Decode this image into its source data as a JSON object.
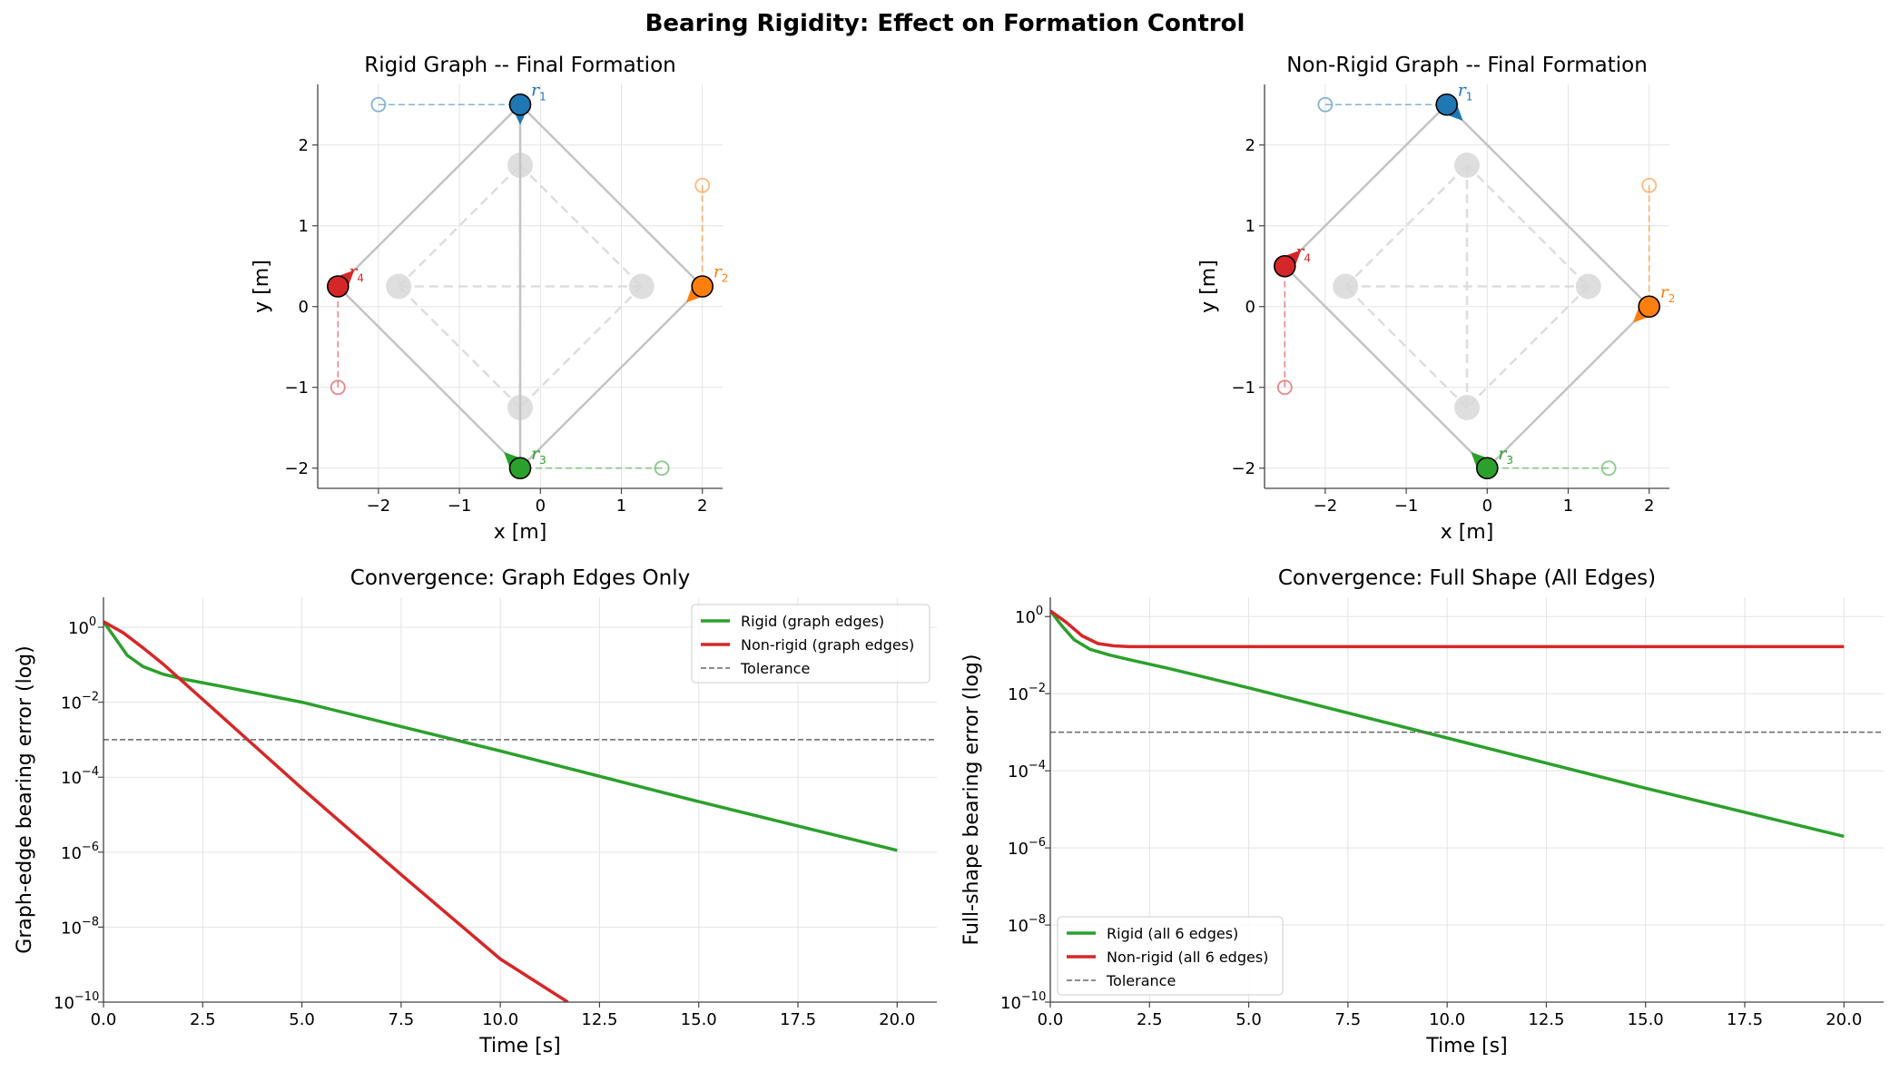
{
  "figure": {
    "title": "Bearing Rigidity: Effect on Formation Control"
  },
  "chart_data": [
    {
      "type": "scatter",
      "title": "Rigid Graph -- Final Formation",
      "xlabel": "x [m]",
      "ylabel": "y [m]",
      "xlim": [
        -2.75,
        2.25
      ],
      "ylim": [
        -2.25,
        2.75
      ],
      "xticks": [
        -2,
        -1,
        0,
        1,
        2
      ],
      "yticks": [
        -2,
        -1,
        0,
        1,
        2
      ],
      "grid": true,
      "target_shape": [
        [
          -0.25,
          1.75
        ],
        [
          1.25,
          0.25
        ],
        [
          -0.25,
          -1.25
        ],
        [
          -1.75,
          0.25
        ]
      ],
      "target_edges": [
        [
          0,
          1
        ],
        [
          1,
          2
        ],
        [
          2,
          3
        ],
        [
          3,
          0
        ],
        [
          0,
          2
        ],
        [
          1,
          3
        ]
      ],
      "graph_edges": [
        [
          0,
          1
        ],
        [
          1,
          2
        ],
        [
          2,
          3
        ],
        [
          3,
          0
        ],
        [
          0,
          2
        ]
      ],
      "robots": [
        {
          "name": "r",
          "sub": "1",
          "color": "#1f77b4",
          "start": [
            -2.0,
            2.5
          ],
          "final": [
            -0.25,
            2.5
          ],
          "arrow_to": [
            -0.25,
            2.25
          ]
        },
        {
          "name": "r",
          "sub": "2",
          "color": "#ff7f0e",
          "start": [
            2.0,
            1.5
          ],
          "final": [
            2.0,
            0.25
          ],
          "arrow_to": [
            1.8,
            0.05
          ]
        },
        {
          "name": "r",
          "sub": "3",
          "color": "#2ca02c",
          "start": [
            1.5,
            -2.0
          ],
          "final": [
            -0.25,
            -2.0
          ],
          "arrow_to": [
            -0.45,
            -1.8
          ]
        },
        {
          "name": "r",
          "sub": "4",
          "color": "#d62728",
          "start": [
            -2.5,
            -1.0
          ],
          "final": [
            -2.5,
            0.25
          ],
          "arrow_to": [
            -2.3,
            0.45
          ]
        }
      ]
    },
    {
      "type": "scatter",
      "title": "Non-Rigid Graph -- Final Formation",
      "xlabel": "x [m]",
      "ylabel": "y [m]",
      "xlim": [
        -2.75,
        2.25
      ],
      "ylim": [
        -2.25,
        2.75
      ],
      "xticks": [
        -2,
        -1,
        0,
        1,
        2
      ],
      "yticks": [
        -2,
        -1,
        0,
        1,
        2
      ],
      "grid": true,
      "target_shape": [
        [
          -0.25,
          1.75
        ],
        [
          1.25,
          0.25
        ],
        [
          -0.25,
          -1.25
        ],
        [
          -1.75,
          0.25
        ]
      ],
      "target_edges": [
        [
          0,
          1
        ],
        [
          1,
          2
        ],
        [
          2,
          3
        ],
        [
          3,
          0
        ],
        [
          0,
          2
        ],
        [
          1,
          3
        ]
      ],
      "graph_edges": [
        [
          0,
          1
        ],
        [
          1,
          2
        ],
        [
          2,
          3
        ],
        [
          3,
          0
        ]
      ],
      "robots": [
        {
          "name": "r",
          "sub": "1",
          "color": "#1f77b4",
          "start": [
            -2.0,
            2.5
          ],
          "final": [
            -0.5,
            2.5
          ],
          "arrow_to": [
            -0.3,
            2.3
          ]
        },
        {
          "name": "r",
          "sub": "2",
          "color": "#ff7f0e",
          "start": [
            2.0,
            1.5
          ],
          "final": [
            2.0,
            0.0
          ],
          "arrow_to": [
            1.8,
            -0.2
          ]
        },
        {
          "name": "r",
          "sub": "3",
          "color": "#2ca02c",
          "start": [
            1.5,
            -2.0
          ],
          "final": [
            0.0,
            -2.0
          ],
          "arrow_to": [
            -0.2,
            -1.8
          ]
        },
        {
          "name": "r",
          "sub": "4",
          "color": "#d62728",
          "start": [
            -2.5,
            -1.0
          ],
          "final": [
            -2.5,
            0.5
          ],
          "arrow_to": [
            -2.3,
            0.7
          ]
        }
      ]
    },
    {
      "type": "line",
      "title": "Convergence: Graph Edges Only",
      "xlabel": "Time [s]",
      "ylabel": "Graph-edge bearing error (log)",
      "xlim": [
        0,
        21
      ],
      "ylim_log10": [
        -10,
        0.8
      ],
      "xticks": [
        0.0,
        2.5,
        5.0,
        7.5,
        10.0,
        12.5,
        15.0,
        17.5,
        20.0
      ],
      "ytick_exps": [
        0,
        -2,
        -4,
        -6,
        -8,
        -10
      ],
      "grid": true,
      "legend_position": "top-right",
      "tolerance": 0.001,
      "series": [
        {
          "name": "Rigid (graph edges)",
          "color": "#2ca02c",
          "x": [
            0,
            0.3,
            0.6,
            1.0,
            1.5,
            2.0,
            3,
            5,
            10,
            15,
            20
          ],
          "log10_values": [
            0.15,
            -0.3,
            -0.75,
            -1.05,
            -1.25,
            -1.38,
            -1.58,
            -2.0,
            -3.3,
            -4.65,
            -5.95
          ]
        },
        {
          "name": "Non-rigid (graph edges)",
          "color": "#d62728",
          "x": [
            0,
            0.5,
            1.0,
            1.5,
            2.0,
            3,
            5,
            7.5,
            10,
            11.7
          ],
          "log10_values": [
            0.15,
            -0.15,
            -0.55,
            -0.98,
            -1.45,
            -2.4,
            -4.3,
            -6.6,
            -8.85,
            -10.0
          ]
        },
        {
          "name": "Tolerance",
          "color": "#666666",
          "dashed": true,
          "constant": 0.001
        }
      ]
    },
    {
      "type": "line",
      "title": "Convergence: Full Shape (All Edges)",
      "xlabel": "Time [s]",
      "ylabel": "Full-shape bearing error (log)",
      "xlim": [
        0,
        21
      ],
      "ylim_log10": [
        -10,
        0.5
      ],
      "xticks": [
        0.0,
        2.5,
        5.0,
        7.5,
        10.0,
        12.5,
        15.0,
        17.5,
        20.0
      ],
      "ytick_exps": [
        0,
        -2,
        -4,
        -6,
        -8,
        -10
      ],
      "grid": true,
      "legend_position": "bottom-left",
      "tolerance": 0.001,
      "series": [
        {
          "name": "Rigid (all 6 edges)",
          "color": "#2ca02c",
          "x": [
            0,
            0.3,
            0.6,
            1.0,
            1.5,
            2.0,
            3,
            5,
            10,
            15,
            20
          ],
          "log10_values": [
            0.15,
            -0.25,
            -0.6,
            -0.85,
            -1.0,
            -1.12,
            -1.35,
            -1.85,
            -3.15,
            -4.45,
            -5.7
          ]
        },
        {
          "name": "Non-rigid (all 6 edges)",
          "color": "#d62728",
          "x": [
            0,
            0.4,
            0.8,
            1.2,
            1.6,
            2.0,
            5,
            10,
            15,
            20
          ],
          "log10_values": [
            0.15,
            -0.15,
            -0.5,
            -0.7,
            -0.76,
            -0.78,
            -0.78,
            -0.78,
            -0.78,
            -0.78
          ]
        },
        {
          "name": "Tolerance",
          "color": "#666666",
          "dashed": true,
          "constant": 0.001
        }
      ]
    }
  ]
}
